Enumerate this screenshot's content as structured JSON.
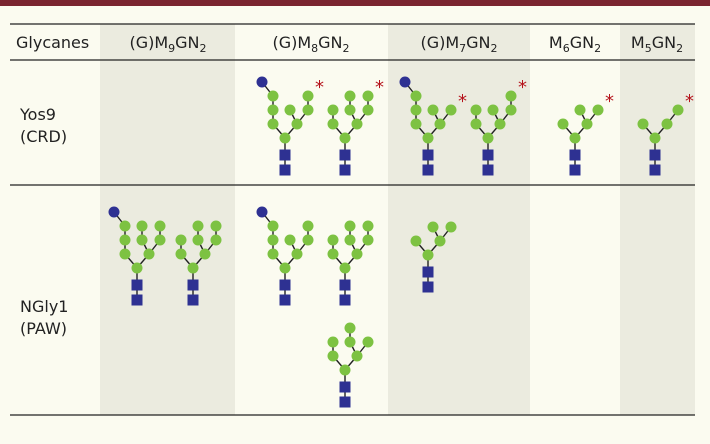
{
  "header": {
    "label": "Glycanes",
    "columns": [
      {
        "prefix": "(G)M",
        "m": "9",
        "gn": "GN",
        "n": "2"
      },
      {
        "prefix": "(G)M",
        "m": "8",
        "gn": "GN",
        "n": "2"
      },
      {
        "prefix": "(G)M",
        "m": "7",
        "gn": "GN",
        "n": "2"
      },
      {
        "prefix": "M",
        "m": "6",
        "gn": "GN",
        "n": "2"
      },
      {
        "prefix": "M",
        "m": "5",
        "gn": "GN",
        "n": "2"
      }
    ]
  },
  "rows": [
    {
      "name": "Yos9",
      "domain": "(CRD)"
    },
    {
      "name": "NGly1",
      "domain": "(PAW)"
    }
  ],
  "marker": "*"
}
